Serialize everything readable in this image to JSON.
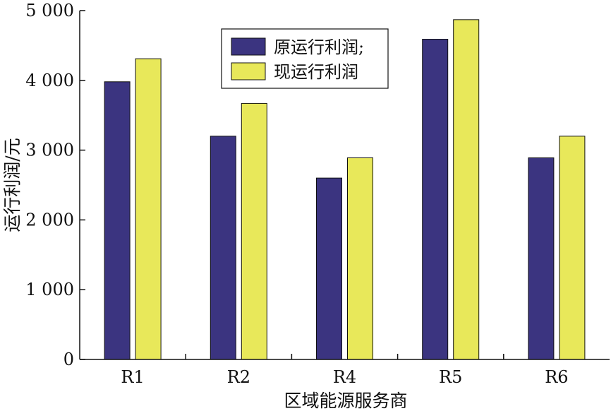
{
  "chart_data": {
    "type": "bar",
    "categories": [
      "R1",
      "R2",
      "R4",
      "R5",
      "R6"
    ],
    "series": [
      {
        "name": "原运行利润;",
        "values": [
          3980,
          3200,
          2600,
          4590,
          2890
        ],
        "color": "#3b3480"
      },
      {
        "name": "现运行利润",
        "values": [
          4310,
          3670,
          2890,
          4870,
          3200
        ],
        "color": "#e8e85a"
      }
    ],
    "xlabel": "区域能源服务商",
    "ylabel": "运行利润/元",
    "ylim": [
      0,
      5000
    ],
    "yticks": [
      0,
      1000,
      2000,
      3000,
      4000,
      5000
    ],
    "ytick_labels": [
      "0",
      "1 000",
      "2 000",
      "3 000",
      "4 000",
      "5 000"
    ],
    "grid": false,
    "legend_position": "top-center"
  }
}
